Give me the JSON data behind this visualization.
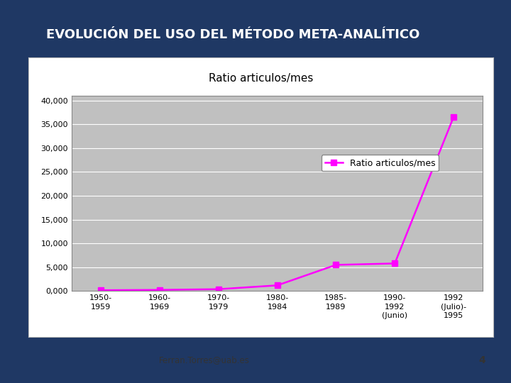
{
  "title": "EVOLUCIÓN DEL USO DEL MÉTODO META-ANALÍTICO",
  "chart_title": "Ratio articulos/mes",
  "categories": [
    "1950-\n1959",
    "1960-\n1969",
    "1970-\n1979",
    "1980-\n1984",
    "1985-\n1989",
    "1990-\n1992\n(Junio)",
    "1992\n(Julio)-\n1995"
  ],
  "values": [
    180,
    250,
    400,
    1200,
    5500,
    5800,
    36500
  ],
  "line_color": "#FF00FF",
  "marker_color": "#FF00FF",
  "legend_label": "Ratio articulos/mes",
  "ylabel_ticks": [
    0,
    5000,
    10000,
    15000,
    20000,
    25000,
    30000,
    35000,
    40000
  ],
  "ylabel_labels": [
    "0,000",
    "5,000",
    "10,000",
    "15,000",
    "20,000",
    "25,000",
    "30,000",
    "35,000",
    "40,000"
  ],
  "ylim": [
    0,
    41000
  ],
  "bg_slide": "#1F3864",
  "bg_panel": "#FFFFFF",
  "bg_chart": "#C0C0C0",
  "bg_legend": "#FFFFFF",
  "footer_text": "Ferran.Torres@uab.es",
  "footer_number": "4",
  "title_color": "#FFFFFF",
  "title_fontsize": 13,
  "chart_title_fontsize": 11
}
